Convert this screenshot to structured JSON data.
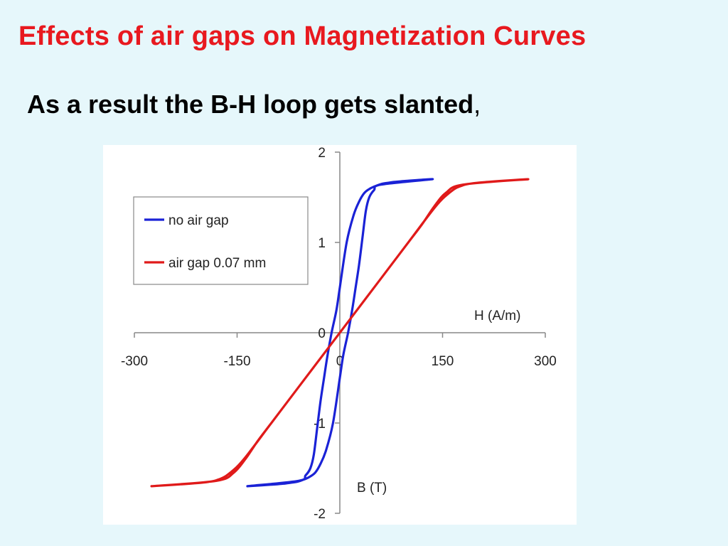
{
  "slide": {
    "title": "Effects of air gaps on Magnetization  Curves",
    "subtitle_main": "As a result the B-H loop gets  slanted",
    "subtitle_tail": ","
  },
  "colors": {
    "title": "#e8191f",
    "background": "#e6f7fb",
    "no_air_gap": "#1a22d6",
    "air_gap": "#e01a1a"
  },
  "chart_data": {
    "type": "line",
    "xlabel": "H (A/m)",
    "ylabel": "B (T)",
    "xlim": [
      -300,
      300
    ],
    "ylim": [
      -2,
      2
    ],
    "x_ticks": [
      "-300",
      "-150",
      "0",
      "150",
      "300"
    ],
    "y_ticks": [
      "2",
      "1",
      "0",
      "-1",
      "-2"
    ],
    "grid": false,
    "legend_position": "top-left",
    "series": [
      {
        "name": "no air gap",
        "color": "#1a22d6",
        "x": [
          -135,
          -60,
          -50,
          -43,
          -38,
          -33,
          -28,
          -23,
          -18,
          -12,
          -5,
          0,
          10,
          20,
          28,
          36,
          45,
          54,
          62,
          70,
          80,
          95,
          135,
          60,
          50,
          43,
          38,
          33,
          28,
          23,
          18,
          12,
          5,
          0,
          -10,
          -20,
          -28,
          -36,
          -45,
          -54,
          -62,
          -70,
          -80,
          -95,
          -135
        ],
        "y": [
          -1.7,
          -1.64,
          -1.58,
          -1.5,
          -1.35,
          -1.05,
          -0.75,
          -0.5,
          -0.25,
          0.0,
          0.25,
          0.5,
          1.0,
          1.3,
          1.45,
          1.55,
          1.6,
          1.63,
          1.65,
          1.66,
          1.67,
          1.68,
          1.7,
          1.64,
          1.58,
          1.5,
          1.35,
          1.05,
          0.75,
          0.5,
          0.25,
          0.0,
          -0.25,
          -0.5,
          -1.0,
          -1.3,
          -1.45,
          -1.55,
          -1.6,
          -1.63,
          -1.65,
          -1.66,
          -1.67,
          -1.68,
          -1.7
        ]
      },
      {
        "name": "air gap 0.07 mm",
        "color": "#e01a1a",
        "x": [
          -275,
          -180,
          -155,
          -138,
          -120,
          -100,
          -60,
          -30,
          0,
          30,
          60,
          100,
          140,
          160,
          175,
          200,
          275,
          180,
          155,
          138,
          120,
          100,
          60,
          30,
          0,
          -30,
          -60,
          -100,
          -140,
          -160,
          -175,
          -200,
          -275
        ],
        "y": [
          -1.7,
          -1.64,
          -1.55,
          -1.4,
          -1.2,
          -1.0,
          -0.6,
          -0.3,
          0.0,
          0.3,
          0.6,
          1.0,
          1.4,
          1.55,
          1.62,
          1.66,
          1.7,
          1.64,
          1.55,
          1.4,
          1.2,
          1.0,
          0.6,
          0.3,
          0.0,
          -0.3,
          -0.6,
          -1.0,
          -1.4,
          -1.55,
          -1.62,
          -1.66,
          -1.7
        ]
      }
    ]
  }
}
